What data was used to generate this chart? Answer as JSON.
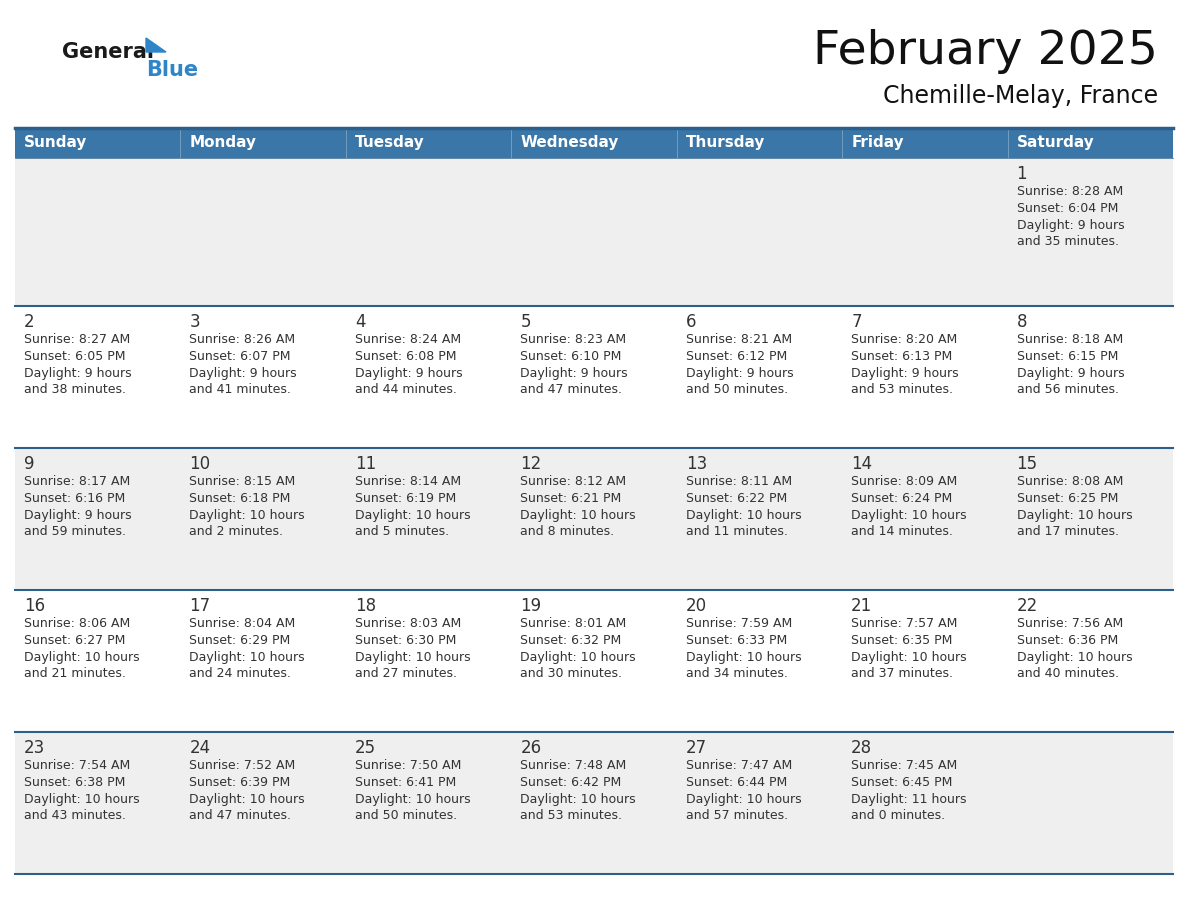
{
  "title": "February 2025",
  "subtitle": "Chemille-Melay, France",
  "header_bg": "#3a76a8",
  "header_text_color": "#ffffff",
  "day_names": [
    "Sunday",
    "Monday",
    "Tuesday",
    "Wednesday",
    "Thursday",
    "Friday",
    "Saturday"
  ],
  "cell_bg_odd": "#efefef",
  "cell_bg_even": "#ffffff",
  "border_color": "#2d5f8a",
  "text_color": "#333333",
  "number_color": "#333333",
  "logo_general_color": "#1a1a1a",
  "logo_blue_color": "#2e86c8",
  "days": [
    {
      "day": 1,
      "col": 6,
      "row": 0,
      "sunrise": "8:28 AM",
      "sunset": "6:04 PM",
      "daylight_hours": "9",
      "daylight_minutes": "35"
    },
    {
      "day": 2,
      "col": 0,
      "row": 1,
      "sunrise": "8:27 AM",
      "sunset": "6:05 PM",
      "daylight_hours": "9",
      "daylight_minutes": "38"
    },
    {
      "day": 3,
      "col": 1,
      "row": 1,
      "sunrise": "8:26 AM",
      "sunset": "6:07 PM",
      "daylight_hours": "9",
      "daylight_minutes": "41"
    },
    {
      "day": 4,
      "col": 2,
      "row": 1,
      "sunrise": "8:24 AM",
      "sunset": "6:08 PM",
      "daylight_hours": "9",
      "daylight_minutes": "44"
    },
    {
      "day": 5,
      "col": 3,
      "row": 1,
      "sunrise": "8:23 AM",
      "sunset": "6:10 PM",
      "daylight_hours": "9",
      "daylight_minutes": "47"
    },
    {
      "day": 6,
      "col": 4,
      "row": 1,
      "sunrise": "8:21 AM",
      "sunset": "6:12 PM",
      "daylight_hours": "9",
      "daylight_minutes": "50"
    },
    {
      "day": 7,
      "col": 5,
      "row": 1,
      "sunrise": "8:20 AM",
      "sunset": "6:13 PM",
      "daylight_hours": "9",
      "daylight_minutes": "53"
    },
    {
      "day": 8,
      "col": 6,
      "row": 1,
      "sunrise": "8:18 AM",
      "sunset": "6:15 PM",
      "daylight_hours": "9",
      "daylight_minutes": "56"
    },
    {
      "day": 9,
      "col": 0,
      "row": 2,
      "sunrise": "8:17 AM",
      "sunset": "6:16 PM",
      "daylight_hours": "9",
      "daylight_minutes": "59"
    },
    {
      "day": 10,
      "col": 1,
      "row": 2,
      "sunrise": "8:15 AM",
      "sunset": "6:18 PM",
      "daylight_hours": "10",
      "daylight_minutes": "2"
    },
    {
      "day": 11,
      "col": 2,
      "row": 2,
      "sunrise": "8:14 AM",
      "sunset": "6:19 PM",
      "daylight_hours": "10",
      "daylight_minutes": "5"
    },
    {
      "day": 12,
      "col": 3,
      "row": 2,
      "sunrise": "8:12 AM",
      "sunset": "6:21 PM",
      "daylight_hours": "10",
      "daylight_minutes": "8"
    },
    {
      "day": 13,
      "col": 4,
      "row": 2,
      "sunrise": "8:11 AM",
      "sunset": "6:22 PM",
      "daylight_hours": "10",
      "daylight_minutes": "11"
    },
    {
      "day": 14,
      "col": 5,
      "row": 2,
      "sunrise": "8:09 AM",
      "sunset": "6:24 PM",
      "daylight_hours": "10",
      "daylight_minutes": "14"
    },
    {
      "day": 15,
      "col": 6,
      "row": 2,
      "sunrise": "8:08 AM",
      "sunset": "6:25 PM",
      "daylight_hours": "10",
      "daylight_minutes": "17"
    },
    {
      "day": 16,
      "col": 0,
      "row": 3,
      "sunrise": "8:06 AM",
      "sunset": "6:27 PM",
      "daylight_hours": "10",
      "daylight_minutes": "21"
    },
    {
      "day": 17,
      "col": 1,
      "row": 3,
      "sunrise": "8:04 AM",
      "sunset": "6:29 PM",
      "daylight_hours": "10",
      "daylight_minutes": "24"
    },
    {
      "day": 18,
      "col": 2,
      "row": 3,
      "sunrise": "8:03 AM",
      "sunset": "6:30 PM",
      "daylight_hours": "10",
      "daylight_minutes": "27"
    },
    {
      "day": 19,
      "col": 3,
      "row": 3,
      "sunrise": "8:01 AM",
      "sunset": "6:32 PM",
      "daylight_hours": "10",
      "daylight_minutes": "30"
    },
    {
      "day": 20,
      "col": 4,
      "row": 3,
      "sunrise": "7:59 AM",
      "sunset": "6:33 PM",
      "daylight_hours": "10",
      "daylight_minutes": "34"
    },
    {
      "day": 21,
      "col": 5,
      "row": 3,
      "sunrise": "7:57 AM",
      "sunset": "6:35 PM",
      "daylight_hours": "10",
      "daylight_minutes": "37"
    },
    {
      "day": 22,
      "col": 6,
      "row": 3,
      "sunrise": "7:56 AM",
      "sunset": "6:36 PM",
      "daylight_hours": "10",
      "daylight_minutes": "40"
    },
    {
      "day": 23,
      "col": 0,
      "row": 4,
      "sunrise": "7:54 AM",
      "sunset": "6:38 PM",
      "daylight_hours": "10",
      "daylight_minutes": "43"
    },
    {
      "day": 24,
      "col": 1,
      "row": 4,
      "sunrise": "7:52 AM",
      "sunset": "6:39 PM",
      "daylight_hours": "10",
      "daylight_minutes": "47"
    },
    {
      "day": 25,
      "col": 2,
      "row": 4,
      "sunrise": "7:50 AM",
      "sunset": "6:41 PM",
      "daylight_hours": "10",
      "daylight_minutes": "50"
    },
    {
      "day": 26,
      "col": 3,
      "row": 4,
      "sunrise": "7:48 AM",
      "sunset": "6:42 PM",
      "daylight_hours": "10",
      "daylight_minutes": "53"
    },
    {
      "day": 27,
      "col": 4,
      "row": 4,
      "sunrise": "7:47 AM",
      "sunset": "6:44 PM",
      "daylight_hours": "10",
      "daylight_minutes": "57"
    },
    {
      "day": 28,
      "col": 5,
      "row": 4,
      "sunrise": "7:45 AM",
      "sunset": "6:45 PM",
      "daylight_hours": "11",
      "daylight_minutes": "0"
    }
  ]
}
